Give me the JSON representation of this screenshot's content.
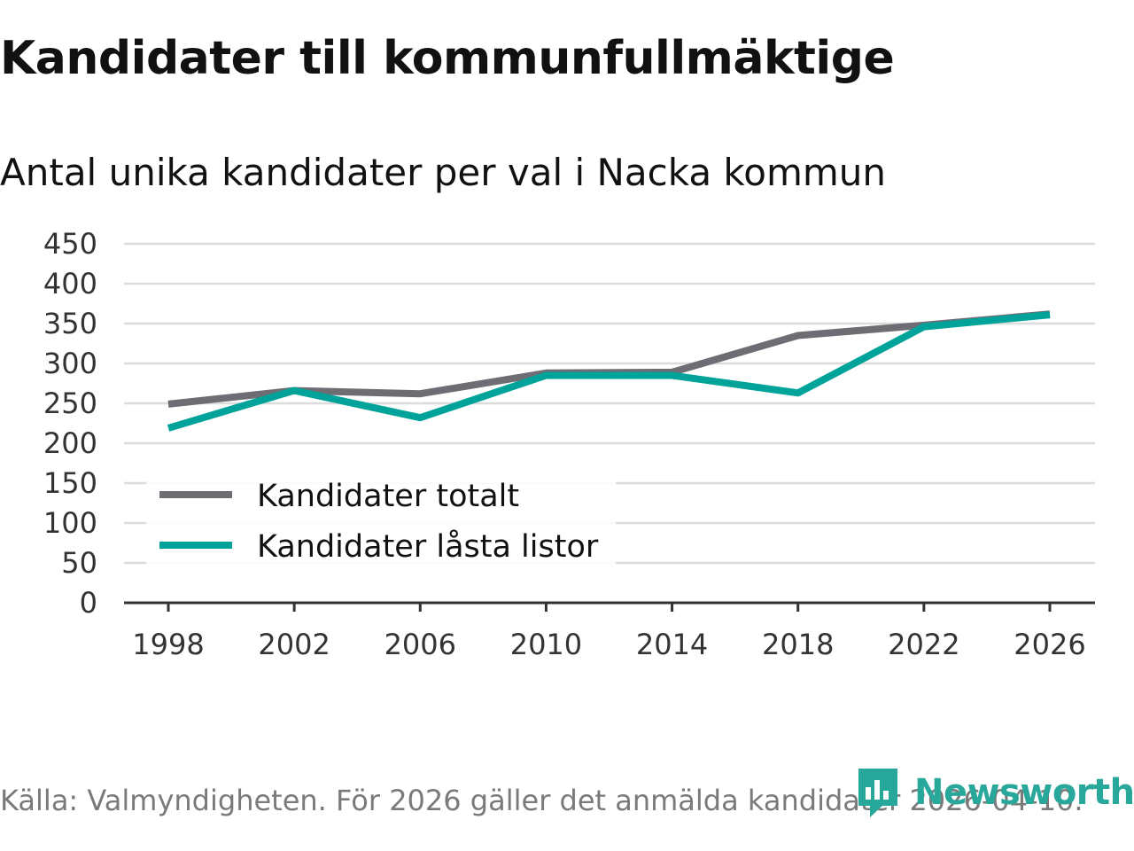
{
  "title": "Kandidater till kommunfullmäktige",
  "subtitle": "Antal unika kandidater per val i Nacka kommun",
  "source": "Källa: Valmyndigheten. För 2026 gäller det anmälda kandidater 2026-04-10.",
  "brand": {
    "name": "Newsworthy",
    "color": "#27a89a",
    "icon": "newsworthy-logo-icon"
  },
  "chart_data": {
    "type": "line",
    "title": "Kandidater till kommunfullmäktige",
    "subtitle": "Antal unika kandidater per val i Nacka kommun",
    "xlabel": "",
    "ylabel": "",
    "x": [
      "1998",
      "2002",
      "2006",
      "2010",
      "2014",
      "2018",
      "2022",
      "2026"
    ],
    "ylim": [
      0,
      450
    ],
    "yticks": [
      "0",
      "50",
      "100",
      "150",
      "200",
      "250",
      "300",
      "350",
      "400",
      "450"
    ],
    "grid": true,
    "legend_position": "bottom-left",
    "series": [
      {
        "name": "Kandidater totalt",
        "color": "#6e6d73",
        "values": [
          249,
          266,
          262,
          288,
          289,
          335,
          348,
          362
        ]
      },
      {
        "name": "Kandidater låsta listor",
        "color": "#00a39a",
        "values": [
          219,
          266,
          232,
          285,
          285,
          263,
          346,
          361
        ]
      }
    ]
  }
}
